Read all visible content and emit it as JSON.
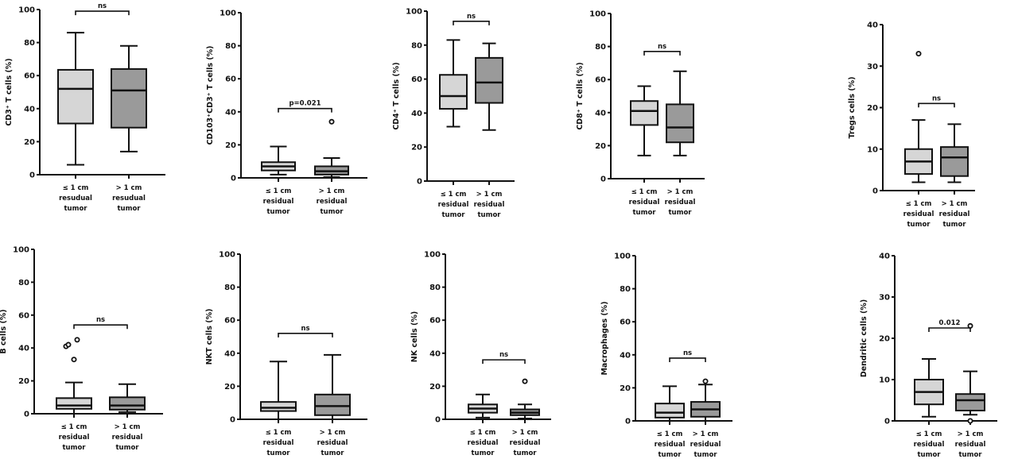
{
  "colors": {
    "group1_fill": "#d6d6d6",
    "group2_fill": "#9a9a9a",
    "line": "#111111"
  },
  "chart_data": [
    {
      "type": "box",
      "ylabel": "CD3⁺ T cells (%)",
      "ylim": [
        0,
        100
      ],
      "yticks": [
        0,
        20,
        40,
        60,
        80,
        100
      ],
      "categories": [
        "≤ 1 cm resudual tumor",
        "> 1 cm resudual tumor"
      ],
      "series": [
        {
          "min": 6,
          "q1": 31,
          "median": 52,
          "q3": 63.5,
          "max": 86,
          "outliers": []
        },
        {
          "min": 14,
          "q1": 28.5,
          "median": 51,
          "q3": 64,
          "max": 78,
          "outliers": []
        }
      ],
      "annotation": {
        "text": "ns",
        "y": 99
      }
    },
    {
      "type": "box",
      "ylabel": "CD103⁺CD3⁺ T cells (%)",
      "ylim": [
        0,
        100
      ],
      "yticks": [
        0,
        20,
        40,
        60,
        80,
        100
      ],
      "categories": [
        "≤ 1 cm residual tumor",
        "> 1 cm residual tumor"
      ],
      "series": [
        {
          "min": 2,
          "q1": 4.5,
          "median": 7,
          "q3": 9.5,
          "max": 19,
          "outliers": []
        },
        {
          "min": 0.5,
          "q1": 2,
          "median": 4,
          "q3": 7,
          "max": 12,
          "outliers": [
            34
          ]
        }
      ],
      "annotation": {
        "text": "p=0.021",
        "y": 42
      }
    },
    {
      "type": "box",
      "ylabel": "CD4⁺ T cells (%)",
      "ylim": [
        0,
        100
      ],
      "yticks": [
        0,
        20,
        40,
        60,
        80,
        100
      ],
      "categories": [
        "≤ 1 cm residual tumor",
        "> 1 cm residual tumor"
      ],
      "series": [
        {
          "min": 32,
          "q1": 42.5,
          "median": 50,
          "q3": 62.5,
          "max": 83,
          "outliers": []
        },
        {
          "min": 30,
          "q1": 46,
          "median": 58,
          "q3": 72.5,
          "max": 81,
          "outliers": []
        }
      ],
      "annotation": {
        "text": "ns",
        "y": 94
      }
    },
    {
      "type": "box",
      "ylabel": "CD8⁺ T cells (%)",
      "ylim": [
        0,
        100
      ],
      "yticks": [
        0,
        20,
        40,
        60,
        80,
        100
      ],
      "categories": [
        "≤ 1 cm residual tumor",
        "> 1 cm residual tumor"
      ],
      "series": [
        {
          "min": 14,
          "q1": 32.5,
          "median": 41,
          "q3": 47,
          "max": 56,
          "outliers": []
        },
        {
          "min": 14,
          "q1": 22,
          "median": 31,
          "q3": 45,
          "max": 65,
          "outliers": []
        }
      ],
      "annotation": {
        "text": "ns",
        "y": 77
      }
    },
    {
      "type": "box",
      "ylabel": "Tregs cells (%)",
      "ylim": [
        0,
        40
      ],
      "yticks": [
        0,
        10,
        20,
        30,
        40
      ],
      "categories": [
        "≤ 1 cm residual tumor",
        "> 1 cm residual tumor"
      ],
      "series": [
        {
          "min": 2,
          "q1": 4,
          "median": 7,
          "q3": 10,
          "max": 17,
          "outliers": [
            33
          ]
        },
        {
          "min": 2,
          "q1": 3.5,
          "median": 8,
          "q3": 10.5,
          "max": 16,
          "outliers": []
        }
      ],
      "annotation": {
        "text": "ns",
        "y": 21
      }
    },
    {
      "type": "box",
      "ylabel": "B cells (%)",
      "ylim": [
        0,
        100
      ],
      "yticks": [
        0,
        20,
        40,
        60,
        80,
        100
      ],
      "categories": [
        "≤ 1 cm residual tumor",
        "> 1 cm residual tumor"
      ],
      "series": [
        {
          "min": 0,
          "q1": 3,
          "median": 5,
          "q3": 9.5,
          "max": 19,
          "outliers": [
            33,
            41,
            42,
            45
          ]
        },
        {
          "min": 1,
          "q1": 2.5,
          "median": 5,
          "q3": 10,
          "max": 18,
          "outliers": []
        }
      ],
      "annotation": {
        "text": "ns",
        "y": 54
      }
    },
    {
      "type": "box",
      "ylabel": "NKT cells (%)",
      "ylim": [
        0,
        100
      ],
      "yticks": [
        0,
        20,
        40,
        60,
        80,
        100
      ],
      "categories": [
        "≤ 1 cm residual tumor",
        "> 1 cm residual tumor"
      ],
      "series": [
        {
          "min": 0,
          "q1": 5,
          "median": 7,
          "q3": 10.5,
          "max": 35,
          "outliers": []
        },
        {
          "min": 0,
          "q1": 2.5,
          "median": 8,
          "q3": 15,
          "max": 39,
          "outliers": []
        }
      ],
      "annotation": {
        "text": "ns",
        "y": 52
      }
    },
    {
      "type": "box",
      "ylabel": "NK cells (%)",
      "ylim": [
        0,
        100
      ],
      "yticks": [
        0,
        20,
        40,
        60,
        80,
        100
      ],
      "categories": [
        "≤ 1 cm residual tumor",
        "> 1 cm residual tumor"
      ],
      "series": [
        {
          "min": 1,
          "q1": 4,
          "median": 6.5,
          "q3": 9,
          "max": 15,
          "outliers": []
        },
        {
          "min": 0.5,
          "q1": 2.5,
          "median": 4,
          "q3": 6,
          "max": 9,
          "outliers": [
            23
          ]
        }
      ],
      "annotation": {
        "text": "ns",
        "y": 36
      }
    },
    {
      "type": "box",
      "ylabel": "Macrophages (%)",
      "ylim": [
        0,
        100
      ],
      "yticks": [
        0,
        20,
        40,
        60,
        80,
        100
      ],
      "categories": [
        "≤ 1 cm residual tumor",
        "> 1 cm residual tumor"
      ],
      "series": [
        {
          "min": 0,
          "q1": 2,
          "median": 5,
          "q3": 10.5,
          "max": 21,
          "outliers": []
        },
        {
          "min": 0,
          "q1": 2.5,
          "median": 7,
          "q3": 11.5,
          "max": 22,
          "outliers": [
            24
          ]
        }
      ],
      "annotation": {
        "text": "ns",
        "y": 38
      }
    },
    {
      "type": "box",
      "ylabel": "Dendritic cells (%)",
      "ylim": [
        0,
        40
      ],
      "yticks": [
        0,
        10,
        20,
        30,
        40
      ],
      "categories": [
        "≤ 1 cm residual tumor",
        "> 1 cm residual tumor"
      ],
      "series": [
        {
          "min": 1,
          "q1": 4,
          "median": 7,
          "q3": 10,
          "max": 15,
          "outliers": []
        },
        {
          "min": 1.5,
          "q1": 2.5,
          "median": 5,
          "q3": 6.5,
          "max": 12,
          "outliers": [
            0,
            23
          ]
        }
      ],
      "annotation": {
        "text": "0.012",
        "y": 22.5
      }
    }
  ]
}
